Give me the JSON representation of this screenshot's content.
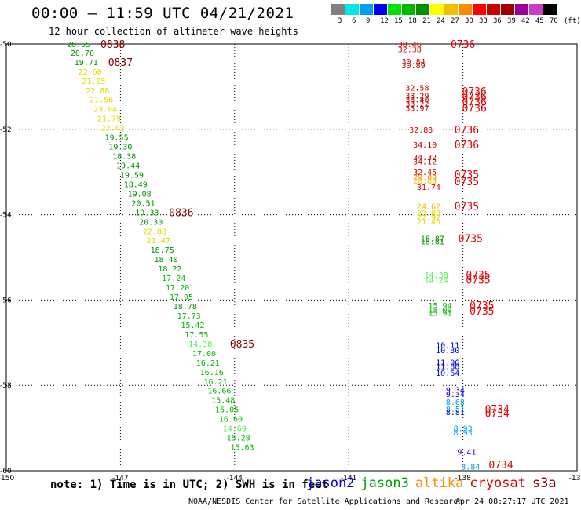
{
  "header": {
    "title": "00:00 – 11:59 UTC 04/21/2021",
    "subtitle": "12 hour collection of altimeter wave heights"
  },
  "color_scale": {
    "colors": [
      "#808080",
      "#00e8e8",
      "#00a0f0",
      "#0000f0",
      "#00e000",
      "#00b800",
      "#009000",
      "#ffff00",
      "#f0c000",
      "#ff8c00",
      "#ff0000",
      "#c80000",
      "#a00000",
      "#960096",
      "#c83cc8",
      "#000000"
    ],
    "labels": [
      "3",
      "6",
      "9",
      "12",
      "15",
      "18",
      "21",
      "24",
      "27",
      "30",
      "33",
      "36",
      "39",
      "42",
      "45",
      "70",
      "(ft)"
    ]
  },
  "axes": {
    "lon_labels": [
      "-150",
      "-147",
      "-144",
      "-141",
      "-138",
      "-135"
    ],
    "lat_labels": [
      "-50",
      "-52",
      "-54",
      "-56",
      "-58",
      "-60"
    ],
    "lon_range": [
      -150,
      -135
    ],
    "lat_range": [
      -60,
      -50
    ]
  },
  "labels": {
    "note": "note: 1) Time is in UTC; 2) SWH is in feet",
    "credit": "NOAA/NESDIS Center for Satellite Applications and Research",
    "timestamp": "Apr 24 08:27:17 UTC 2021",
    "satellites": [
      {
        "name": "jason2",
        "color": "#0000e0"
      },
      {
        "name": "jason3",
        "color": "#00a000"
      },
      {
        "name": "altika",
        "color": "#ff8c00"
      },
      {
        "name": "cryosat",
        "color": "#e00000"
      },
      {
        "name": "s3a",
        "color": "#800000"
      }
    ]
  },
  "chart_data": {
    "type": "scatter",
    "xlabel": "",
    "ylabel": "",
    "xlim": [
      -150,
      -135
    ],
    "ylim": [
      -60,
      -50
    ],
    "swh_points": [
      {
        "lon": -148.1,
        "lat": -50.0,
        "v": "20.55",
        "c": "#009000"
      },
      {
        "lon": -148.0,
        "lat": -50.2,
        "v": "20.70",
        "c": "#009000"
      },
      {
        "lon": -147.9,
        "lat": -50.42,
        "v": "19.71",
        "c": "#009000"
      },
      {
        "lon": -147.8,
        "lat": -50.64,
        "v": "22.60",
        "c": "#e6d800"
      },
      {
        "lon": -147.7,
        "lat": -50.86,
        "v": "21.05",
        "c": "#e6d800"
      },
      {
        "lon": -147.6,
        "lat": -51.08,
        "v": "22.88",
        "c": "#e6d800"
      },
      {
        "lon": -147.5,
        "lat": -51.3,
        "v": "21.56",
        "c": "#e6d800"
      },
      {
        "lon": -147.4,
        "lat": -51.52,
        "v": "23.04",
        "c": "#e6d800"
      },
      {
        "lon": -147.3,
        "lat": -51.74,
        "v": "21.79",
        "c": "#e6d800"
      },
      {
        "lon": -147.2,
        "lat": -51.96,
        "v": "22.02",
        "c": "#e6d800"
      },
      {
        "lon": -147.1,
        "lat": -52.18,
        "v": "19.55",
        "c": "#009000"
      },
      {
        "lon": -147.0,
        "lat": -52.4,
        "v": "19.30",
        "c": "#009000"
      },
      {
        "lon": -146.9,
        "lat": -52.62,
        "v": "18.38",
        "c": "#009000"
      },
      {
        "lon": -146.8,
        "lat": -52.84,
        "v": "19.44",
        "c": "#009000"
      },
      {
        "lon": -146.7,
        "lat": -53.06,
        "v": "19.59",
        "c": "#009000"
      },
      {
        "lon": -146.6,
        "lat": -53.28,
        "v": "18.49",
        "c": "#009000"
      },
      {
        "lon": -146.5,
        "lat": -53.5,
        "v": "19.08",
        "c": "#009000"
      },
      {
        "lon": -146.4,
        "lat": -53.72,
        "v": "20.51",
        "c": "#009000"
      },
      {
        "lon": -146.3,
        "lat": -53.94,
        "v": "19.33",
        "c": "#009000"
      },
      {
        "lon": -146.2,
        "lat": -54.16,
        "v": "20.30",
        "c": "#009000"
      },
      {
        "lon": -146.1,
        "lat": -54.38,
        "v": "22.08",
        "c": "#e6d800"
      },
      {
        "lon": -146.0,
        "lat": -54.6,
        "v": "21.47",
        "c": "#e6d800"
      },
      {
        "lon": -145.9,
        "lat": -54.82,
        "v": "18.75",
        "c": "#009000"
      },
      {
        "lon": -145.8,
        "lat": -55.04,
        "v": "18.40",
        "c": "#009000"
      },
      {
        "lon": -145.7,
        "lat": -55.26,
        "v": "18.22",
        "c": "#009000"
      },
      {
        "lon": -145.6,
        "lat": -55.48,
        "v": "17.24",
        "c": "#00b800"
      },
      {
        "lon": -145.5,
        "lat": -55.7,
        "v": "17.20",
        "c": "#00b800"
      },
      {
        "lon": -145.4,
        "lat": -55.92,
        "v": "17.95",
        "c": "#00b800"
      },
      {
        "lon": -145.3,
        "lat": -56.14,
        "v": "18.78",
        "c": "#009000"
      },
      {
        "lon": -145.2,
        "lat": -56.36,
        "v": "17.73",
        "c": "#00b800"
      },
      {
        "lon": -145.1,
        "lat": -56.58,
        "v": "15.42",
        "c": "#00b800"
      },
      {
        "lon": -145.0,
        "lat": -56.8,
        "v": "17.55",
        "c": "#00b800"
      },
      {
        "lon": -144.9,
        "lat": -57.02,
        "v": "14.38",
        "c": "#50f050"
      },
      {
        "lon": -144.8,
        "lat": -57.24,
        "v": "17.00",
        "c": "#00b800"
      },
      {
        "lon": -144.7,
        "lat": -57.46,
        "v": "16.21",
        "c": "#00b800"
      },
      {
        "lon": -144.6,
        "lat": -57.68,
        "v": "16.16",
        "c": "#00b800"
      },
      {
        "lon": -144.5,
        "lat": -57.9,
        "v": "16.21",
        "c": "#00b800"
      },
      {
        "lon": -144.4,
        "lat": -58.12,
        "v": "16.66",
        "c": "#00b800"
      },
      {
        "lon": -144.3,
        "lat": -58.34,
        "v": "15.48",
        "c": "#00b800"
      },
      {
        "lon": -144.2,
        "lat": -58.56,
        "v": "15.05",
        "c": "#00b800"
      },
      {
        "lon": -144.1,
        "lat": -58.78,
        "v": "16.60",
        "c": "#00b800"
      },
      {
        "lon": -144.0,
        "lat": -59.0,
        "v": "14.69",
        "c": "#50f050"
      },
      {
        "lon": -143.9,
        "lat": -59.22,
        "v": "15.28",
        "c": "#00b800"
      },
      {
        "lon": -143.8,
        "lat": -59.44,
        "v": "15.63",
        "c": "#00b800"
      },
      {
        "lon": -139.4,
        "lat": -50.0,
        "v": "30.46",
        "c": "#e00000"
      },
      {
        "lon": -139.4,
        "lat": -50.12,
        "v": "32.38",
        "c": "#e00000"
      },
      {
        "lon": -139.3,
        "lat": -50.4,
        "v": "30.84",
        "c": "#c00000"
      },
      {
        "lon": -139.3,
        "lat": -50.5,
        "v": "30.89",
        "c": "#c00000"
      },
      {
        "lon": -139.2,
        "lat": -51.02,
        "v": "32.58",
        "c": "#c00000"
      },
      {
        "lon": -139.2,
        "lat": -51.2,
        "v": "33.29",
        "c": "#c00000"
      },
      {
        "lon": -139.2,
        "lat": -51.3,
        "v": "33.40",
        "c": "#c00000"
      },
      {
        "lon": -139.2,
        "lat": -51.4,
        "v": "33.22",
        "c": "#c00000"
      },
      {
        "lon": -139.2,
        "lat": -51.5,
        "v": "33.97",
        "c": "#c00000"
      },
      {
        "lon": -139.1,
        "lat": -52.0,
        "v": "32.83",
        "c": "#e00000"
      },
      {
        "lon": -139.0,
        "lat": -52.35,
        "v": "34.10",
        "c": "#c00000"
      },
      {
        "lon": -139.0,
        "lat": -52.65,
        "v": "34.32",
        "c": "#c00000"
      },
      {
        "lon": -139.0,
        "lat": -52.75,
        "v": "34.12",
        "c": "#c00000"
      },
      {
        "lon": -139.0,
        "lat": -53.0,
        "v": "32.45",
        "c": "#c00000"
      },
      {
        "lon": -139.0,
        "lat": -53.12,
        "v": "29.03",
        "c": "#ff8c00"
      },
      {
        "lon": -139.0,
        "lat": -53.2,
        "v": "28.89",
        "c": "#f0c000"
      },
      {
        "lon": -138.9,
        "lat": -53.35,
        "v": "31.74",
        "c": "#e00000"
      },
      {
        "lon": -138.9,
        "lat": -53.8,
        "v": "24.62",
        "c": "#f0c000"
      },
      {
        "lon": -138.9,
        "lat": -53.95,
        "v": "23.88",
        "c": "#e6d800"
      },
      {
        "lon": -138.9,
        "lat": -54.05,
        "v": "22.92",
        "c": "#e6d800"
      },
      {
        "lon": -138.9,
        "lat": -54.15,
        "v": "21.46",
        "c": "#e6d800"
      },
      {
        "lon": -138.8,
        "lat": -54.55,
        "v": "18.87",
        "c": "#009000"
      },
      {
        "lon": -138.8,
        "lat": -54.62,
        "v": "18.81",
        "c": "#009000"
      },
      {
        "lon": -138.7,
        "lat": -55.4,
        "v": "14.38",
        "c": "#50f050"
      },
      {
        "lon": -138.7,
        "lat": -55.52,
        "v": "14.24",
        "c": "#50f050"
      },
      {
        "lon": -138.6,
        "lat": -56.12,
        "v": "15.94",
        "c": "#00b800"
      },
      {
        "lon": -138.6,
        "lat": -56.22,
        "v": "15.00",
        "c": "#00b800"
      },
      {
        "lon": -138.6,
        "lat": -56.3,
        "v": "15.91",
        "c": "#00b800"
      },
      {
        "lon": -138.4,
        "lat": -57.05,
        "v": "10.11",
        "c": "#0000e0"
      },
      {
        "lon": -138.4,
        "lat": -57.17,
        "v": "10.30",
        "c": "#0000e0"
      },
      {
        "lon": -138.4,
        "lat": -57.45,
        "v": "11.06",
        "c": "#0000e0"
      },
      {
        "lon": -138.4,
        "lat": -57.55,
        "v": "11.88",
        "c": "#0000e0"
      },
      {
        "lon": -138.4,
        "lat": -57.7,
        "v": "10.64",
        "c": "#0000e0"
      },
      {
        "lon": -138.2,
        "lat": -58.1,
        "v": "9.34",
        "c": "#0000e0"
      },
      {
        "lon": -138.2,
        "lat": -58.2,
        "v": "9.34",
        "c": "#0000e0"
      },
      {
        "lon": -138.2,
        "lat": -58.38,
        "v": "8.68",
        "c": "#00a0f0"
      },
      {
        "lon": -138.2,
        "lat": -58.55,
        "v": "8.51",
        "c": "#00a0f0"
      },
      {
        "lon": -138.2,
        "lat": -58.62,
        "v": "8.81",
        "c": "#0000e0"
      },
      {
        "lon": -138.0,
        "lat": -59.0,
        "v": "8.93",
        "c": "#00a0f0"
      },
      {
        "lon": -138.0,
        "lat": -59.1,
        "v": "8.93",
        "c": "#00a0f0"
      },
      {
        "lon": -137.9,
        "lat": -59.55,
        "v": "9.41",
        "c": "#0000e0"
      },
      {
        "lon": -137.8,
        "lat": -59.9,
        "v": "8.84",
        "c": "#00a0f0"
      }
    ],
    "time_labels": [
      {
        "lon": -147.2,
        "lat": -50.0,
        "t": "0838",
        "c": "#800000"
      },
      {
        "lon": -147.0,
        "lat": -50.42,
        "t": "0837",
        "c": "#800000"
      },
      {
        "lon": -145.4,
        "lat": -53.94,
        "t": "0836",
        "c": "#800000"
      },
      {
        "lon": -143.8,
        "lat": -57.02,
        "t": "0835",
        "c": "#800000"
      },
      {
        "lon": -138.0,
        "lat": -50.0,
        "t": "0736",
        "c": "#e00000"
      },
      {
        "lon": -137.7,
        "lat": -51.1,
        "t": "0736",
        "c": "#e00000"
      },
      {
        "lon": -137.7,
        "lat": -51.22,
        "t": "0736",
        "c": "#e00000"
      },
      {
        "lon": -137.7,
        "lat": -51.35,
        "t": "0736",
        "c": "#e00000"
      },
      {
        "lon": -137.7,
        "lat": -51.5,
        "t": "0736",
        "c": "#e00000"
      },
      {
        "lon": -137.9,
        "lat": -52.0,
        "t": "0736",
        "c": "#e00000"
      },
      {
        "lon": -137.9,
        "lat": -52.35,
        "t": "0736",
        "c": "#e00000"
      },
      {
        "lon": -137.9,
        "lat": -53.05,
        "t": "0735",
        "c": "#e00000"
      },
      {
        "lon": -137.9,
        "lat": -53.22,
        "t": "0735",
        "c": "#e00000"
      },
      {
        "lon": -137.9,
        "lat": -53.8,
        "t": "0735",
        "c": "#e00000"
      },
      {
        "lon": -137.8,
        "lat": -54.55,
        "t": "0735",
        "c": "#e00000"
      },
      {
        "lon": -137.6,
        "lat": -55.4,
        "t": "0735",
        "c": "#e00000"
      },
      {
        "lon": -137.6,
        "lat": -55.52,
        "t": "0735",
        "c": "#e00000"
      },
      {
        "lon": -137.5,
        "lat": -56.12,
        "t": "0735",
        "c": "#e00000"
      },
      {
        "lon": -137.5,
        "lat": -56.25,
        "t": "0735",
        "c": "#e00000"
      },
      {
        "lon": -137.1,
        "lat": -58.55,
        "t": "0734",
        "c": "#e00000"
      },
      {
        "lon": -137.1,
        "lat": -58.65,
        "t": "0734",
        "c": "#e00000"
      },
      {
        "lon": -137.0,
        "lat": -59.85,
        "t": "0734",
        "c": "#e00000"
      }
    ]
  }
}
